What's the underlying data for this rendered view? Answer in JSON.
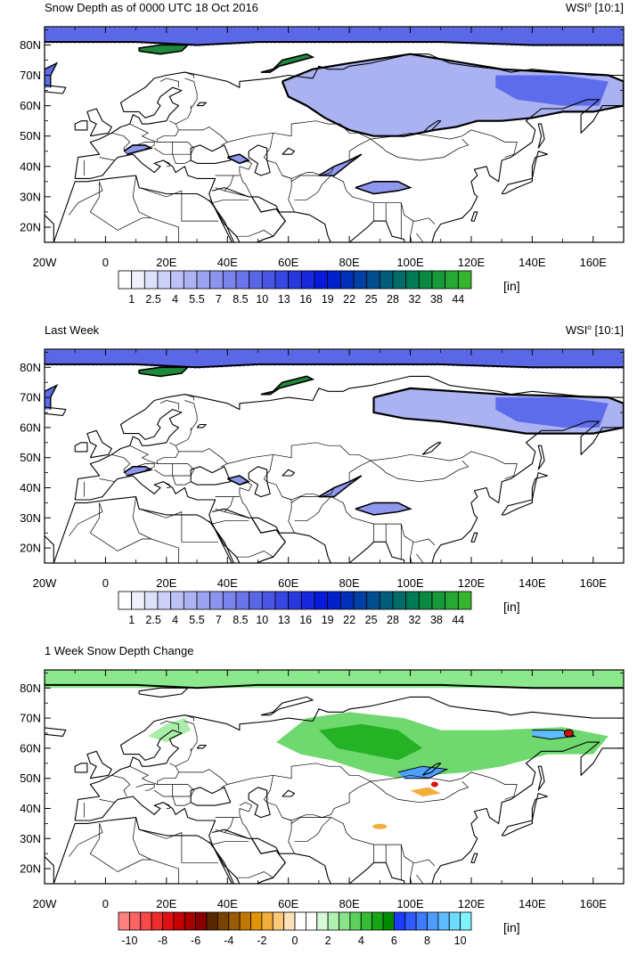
{
  "panels": [
    {
      "title": "Snow Depth as of 0000 UTC 18 Oct 2016",
      "credit": "WSI",
      "credit_sup": "o",
      "ratio": "[10:1]",
      "kind": "depth"
    },
    {
      "title": "Last Week",
      "credit": "WSI",
      "credit_sup": "o",
      "ratio": "[10:1]",
      "kind": "depth_lastweek"
    },
    {
      "title": "1 Week Snow Depth Change",
      "credit": "",
      "credit_sup": "",
      "ratio": "",
      "kind": "change"
    }
  ],
  "lat_ticks": [
    "80N",
    "70N",
    "60N",
    "50N",
    "40N",
    "30N",
    "20N"
  ],
  "lat_values": [
    80,
    70,
    60,
    50,
    40,
    30,
    20
  ],
  "lon_ticks": [
    "20W",
    "0",
    "20E",
    "40E",
    "60E",
    "80E",
    "100E",
    "120E",
    "140E",
    "160E"
  ],
  "lon_values": [
    -20,
    0,
    20,
    40,
    60,
    80,
    100,
    120,
    140,
    160
  ],
  "map_extent": {
    "lon": [
      -20,
      170
    ],
    "lat": [
      15,
      86
    ]
  },
  "depth_colorbar": {
    "unit": "[in]",
    "labels": [
      "1",
      "2.5",
      "4",
      "5.5",
      "7",
      "8.5",
      "10",
      "13",
      "16",
      "19",
      "22",
      "25",
      "28",
      "32",
      "38",
      "44"
    ],
    "colors": [
      "#ffffff",
      "#eef0fc",
      "#dde1fa",
      "#cdd1f8",
      "#bcc2f5",
      "#acb2f3",
      "#9ba3f0",
      "#8b94ee",
      "#7a84eb",
      "#6a75e9",
      "#5966e6",
      "#4956e4",
      "#3847e1",
      "#2838df",
      "#1728dc",
      "#0719da",
      "#0021cc",
      "#0030b8",
      "#003fa4",
      "#004e90",
      "#005d7c",
      "#006c68",
      "#007b54",
      "#0a8a40",
      "#18993a",
      "#26a834",
      "#34b72e"
    ]
  },
  "change_colorbar": {
    "unit": "[in]",
    "labels": [
      "-10",
      "-8",
      "-6",
      "-4",
      "-2",
      "0",
      "2",
      "4",
      "6",
      "8",
      "10"
    ],
    "colors": [
      "#ff8080",
      "#ff6464",
      "#f84848",
      "#ef2c2c",
      "#e01010",
      "#c80000",
      "#a80000",
      "#8a0000",
      "#5a2800",
      "#7a4200",
      "#9a5c00",
      "#c07800",
      "#e09400",
      "#f2ae38",
      "#fbc878",
      "#fde2b8",
      "#ffffff",
      "#ffffff",
      "#d6fad6",
      "#b0f0b0",
      "#88e488",
      "#5cd25c",
      "#34bc34",
      "#16a616",
      "#008c00",
      "#1e3cff",
      "#2e5cff",
      "#3e7cff",
      "#4e9cff",
      "#5ebcff",
      "#6edcff",
      "#7ef4ff"
    ]
  }
}
